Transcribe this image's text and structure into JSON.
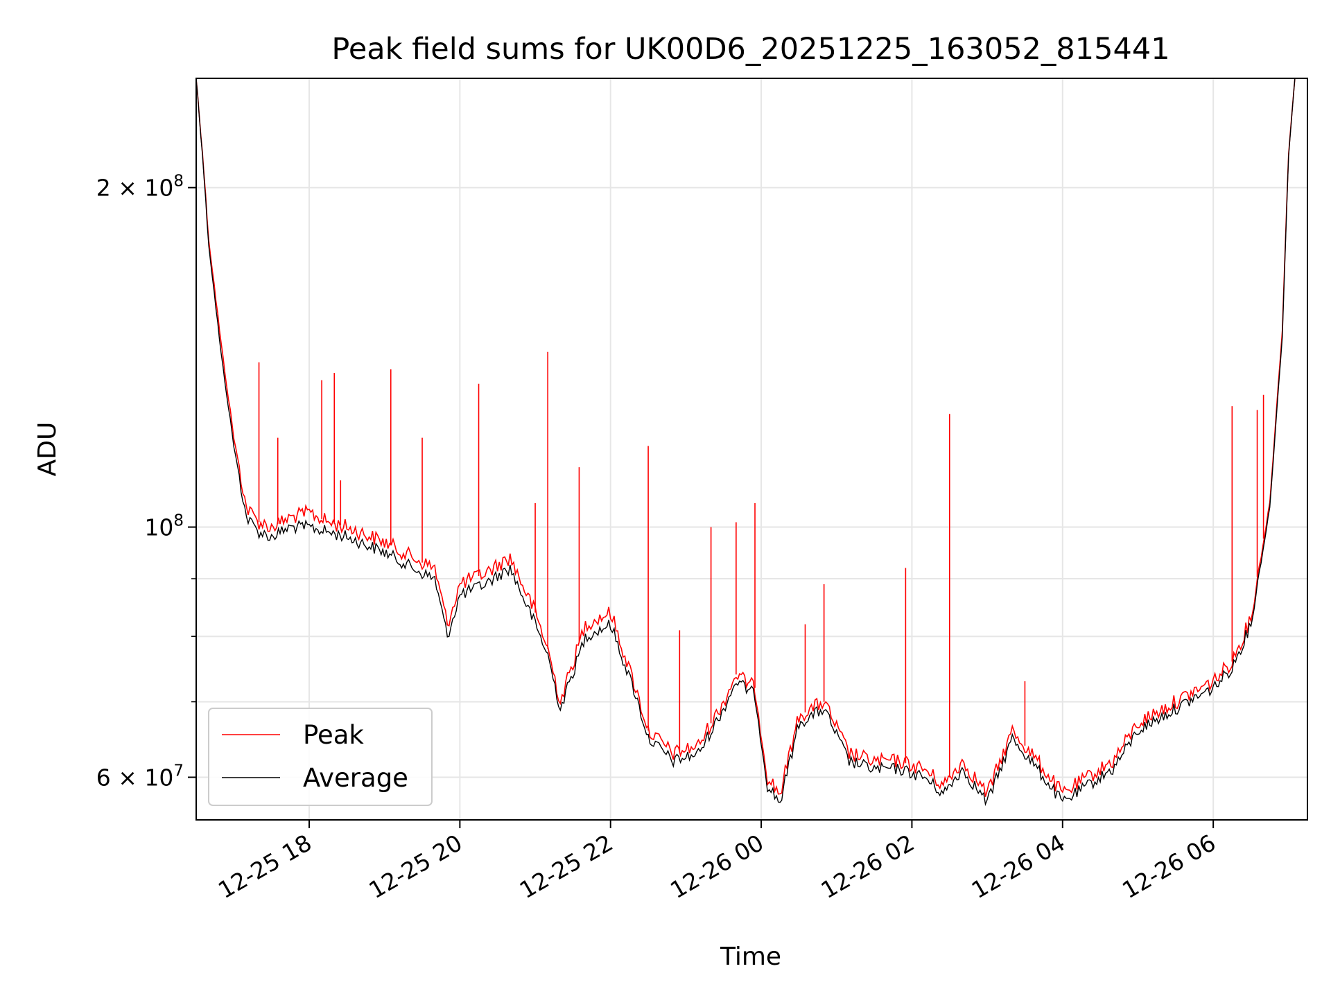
{
  "chart_data": {
    "type": "line",
    "title": "Peak field sums for UK00D6_20251225_163052_815441",
    "xlabel": "Time",
    "ylabel": "ADU",
    "x_axis": {
      "kind": "datetime",
      "range": [
        "2025-12-25 16:30",
        "2025-12-26 07:15"
      ],
      "tick_labels": [
        "12-25 18",
        "12-25 20",
        "12-25 22",
        "12-26 00",
        "12-26 02",
        "12-26 04",
        "12-26 06"
      ],
      "tick_values": [
        "2025-12-25 18:00",
        "2025-12-25 20:00",
        "2025-12-25 22:00",
        "2025-12-26 00:00",
        "2025-12-26 02:00",
        "2025-12-26 04:00",
        "2025-12-26 06:00"
      ]
    },
    "y_axis": {
      "scale": "log",
      "range": [
        55000000,
        250000000
      ],
      "major_ticks": [
        {
          "value": 60000000,
          "label_base": "6 × 10",
          "label_exp": "7"
        },
        {
          "value": 100000000,
          "label_base": "10",
          "label_exp": "8"
        },
        {
          "value": 200000000,
          "label_base": "2 × 10",
          "label_exp": "8"
        }
      ],
      "minor_ticks": [
        70000000,
        80000000,
        90000000
      ]
    },
    "grid": true,
    "legend": {
      "placement": "lower-left",
      "entries": [
        "Peak",
        "Average"
      ]
    },
    "series": [
      {
        "name": "Peak",
        "color": "#ff0000",
        "x": [
          "2025-12-25 16:30",
          "2025-12-25 16:35",
          "2025-12-25 16:40",
          "2025-12-25 16:50",
          "2025-12-25 17:00",
          "2025-12-25 17:10",
          "2025-12-25 17:20",
          "2025-12-25 17:30",
          "2025-12-25 17:45",
          "2025-12-25 18:00",
          "2025-12-25 18:15",
          "2025-12-25 18:30",
          "2025-12-25 19:00",
          "2025-12-25 19:30",
          "2025-12-25 19:40",
          "2025-12-25 19:50",
          "2025-12-25 20:00",
          "2025-12-25 20:20",
          "2025-12-25 20:40",
          "2025-12-25 21:00",
          "2025-12-25 21:10",
          "2025-12-25 21:20",
          "2025-12-25 21:40",
          "2025-12-25 22:00",
          "2025-12-25 22:20",
          "2025-12-25 22:30",
          "2025-12-25 22:50",
          "2025-12-25 23:10",
          "2025-12-25 23:30",
          "2025-12-25 23:40",
          "2025-12-25 23:55",
          "2025-12-26 00:05",
          "2025-12-26 00:15",
          "2025-12-26 00:30",
          "2025-12-26 00:50",
          "2025-12-26 01:10",
          "2025-12-26 01:30",
          "2025-12-26 01:50",
          "2025-12-26 02:10",
          "2025-12-26 02:25",
          "2025-12-26 02:40",
          "2025-12-26 03:00",
          "2025-12-26 03:20",
          "2025-12-26 03:40",
          "2025-12-26 04:00",
          "2025-12-26 04:20",
          "2025-12-26 04:40",
          "2025-12-26 05:00",
          "2025-12-26 05:30",
          "2025-12-26 06:00",
          "2025-12-26 06:15",
          "2025-12-26 06:30",
          "2025-12-26 06:45",
          "2025-12-26 06:55",
          "2025-12-26 07:00",
          "2025-12-26 07:05"
        ],
        "values": [
          250000000,
          215000000,
          180000000,
          145000000,
          120000000,
          104000000,
          101000000,
          100000000,
          102000000,
          103000000,
          101000000,
          100000000,
          97000000,
          93000000,
          92000000,
          82000000,
          89000000,
          91000000,
          94000000,
          84000000,
          78000000,
          70000000,
          82000000,
          84000000,
          72000000,
          66000000,
          63000000,
          64000000,
          70000000,
          74000000,
          72000000,
          60000000,
          58000000,
          68000000,
          70000000,
          63000000,
          62000000,
          62000000,
          61000000,
          59000000,
          62000000,
          58000000,
          66000000,
          62000000,
          58000000,
          60000000,
          62000000,
          67000000,
          70000000,
          73000000,
          76000000,
          83000000,
          105000000,
          150000000,
          215000000,
          250000000
        ]
      },
      {
        "name": "Average",
        "color": "#000000",
        "x": [
          "2025-12-25 16:30",
          "2025-12-25 16:35",
          "2025-12-25 16:40",
          "2025-12-25 16:50",
          "2025-12-25 17:00",
          "2025-12-25 17:10",
          "2025-12-25 17:20",
          "2025-12-25 17:30",
          "2025-12-25 17:45",
          "2025-12-25 18:00",
          "2025-12-25 18:15",
          "2025-12-25 18:30",
          "2025-12-25 19:00",
          "2025-12-25 19:30",
          "2025-12-25 19:40",
          "2025-12-25 19:50",
          "2025-12-25 20:00",
          "2025-12-25 20:20",
          "2025-12-25 20:40",
          "2025-12-25 21:00",
          "2025-12-25 21:10",
          "2025-12-25 21:20",
          "2025-12-25 21:40",
          "2025-12-25 22:00",
          "2025-12-25 22:20",
          "2025-12-25 22:30",
          "2025-12-25 22:50",
          "2025-12-25 23:10",
          "2025-12-25 23:30",
          "2025-12-25 23:40",
          "2025-12-25 23:55",
          "2025-12-26 00:05",
          "2025-12-26 00:15",
          "2025-12-26 00:30",
          "2025-12-26 00:50",
          "2025-12-26 01:10",
          "2025-12-26 01:30",
          "2025-12-26 01:50",
          "2025-12-26 02:10",
          "2025-12-26 02:25",
          "2025-12-26 02:40",
          "2025-12-26 03:00",
          "2025-12-26 03:20",
          "2025-12-26 03:40",
          "2025-12-26 04:00",
          "2025-12-26 04:20",
          "2025-12-26 04:40",
          "2025-12-26 05:00",
          "2025-12-26 05:30",
          "2025-12-26 06:00",
          "2025-12-26 06:15",
          "2025-12-26 06:30",
          "2025-12-26 06:45",
          "2025-12-26 06:55",
          "2025-12-26 07:00",
          "2025-12-26 07:05"
        ],
        "values": [
          250000000,
          214000000,
          178000000,
          142000000,
          118000000,
          102000000,
          99000000,
          98000000,
          100000000,
          100000000,
          99000000,
          98000000,
          95000000,
          91000000,
          90000000,
          80000000,
          87000000,
          89000000,
          92000000,
          82000000,
          77000000,
          69000000,
          80000000,
          82000000,
          71000000,
          65000000,
          62000000,
          63000000,
          69000000,
          73000000,
          71000000,
          59000000,
          57000000,
          67000000,
          69000000,
          62000000,
          61000000,
          61000000,
          60000000,
          58000000,
          61000000,
          57000000,
          65000000,
          61000000,
          57000000,
          59000000,
          61000000,
          66000000,
          69000000,
          72000000,
          75000000,
          82000000,
          104000000,
          148000000,
          214000000,
          250000000
        ]
      }
    ],
    "peak_spikes": {
      "x": [
        "2025-12-25 17:20",
        "2025-12-25 17:35",
        "2025-12-25 18:10",
        "2025-12-25 18:20",
        "2025-12-25 18:25",
        "2025-12-25 19:05",
        "2025-12-25 19:30",
        "2025-12-25 20:15",
        "2025-12-25 21:00",
        "2025-12-25 21:10",
        "2025-12-25 21:35",
        "2025-12-25 22:30",
        "2025-12-25 22:55",
        "2025-12-25 23:20",
        "2025-12-25 23:40",
        "2025-12-25 23:55",
        "2025-12-26 00:35",
        "2025-12-26 00:50",
        "2025-12-26 01:55",
        "2025-12-26 02:30",
        "2025-12-26 03:30",
        "2025-12-26 06:15",
        "2025-12-26 06:35",
        "2025-12-26 06:40"
      ],
      "values": [
        140000000,
        120000000,
        135000000,
        137000000,
        110000000,
        138000000,
        120000000,
        134000000,
        105000000,
        143000000,
        113000000,
        118000000,
        81000000,
        100000000,
        101000000,
        105000000,
        82000000,
        89000000,
        92000000,
        126000000,
        73000000,
        128000000,
        127000000,
        131000000
      ]
    }
  }
}
